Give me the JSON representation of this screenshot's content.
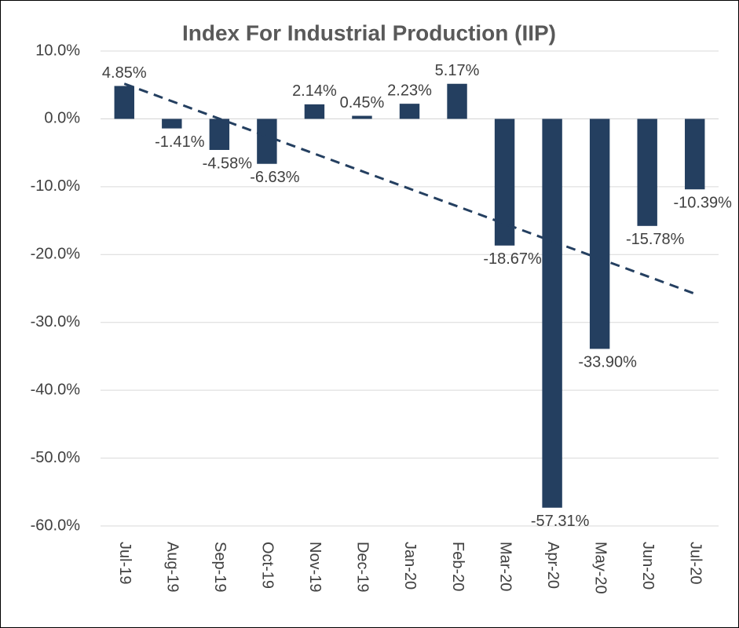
{
  "chart_data": {
    "type": "bar",
    "title": "Index For Industrial Production (IIP)",
    "categories": [
      "Jul-19",
      "Aug-19",
      "Sep-19",
      "Oct-19",
      "Nov-19",
      "Dec-19",
      "Jan-20",
      "Feb-20",
      "Mar-20",
      "Apr-20",
      "May-20",
      "Jun-20",
      "Jul-20"
    ],
    "values": [
      4.85,
      -1.41,
      -4.58,
      -6.63,
      2.14,
      0.45,
      2.23,
      5.17,
      -18.67,
      -57.31,
      -33.9,
      -15.78,
      -10.39
    ],
    "value_labels": [
      "4.85%",
      "-1.41%",
      "-4.58%",
      "-6.63%",
      "2.14%",
      "0.45%",
      "2.23%",
      "5.17%",
      "-18.67%",
      "-57.31%",
      "-33.90%",
      "-15.78%",
      "-10.39%"
    ],
    "color": "#243f60",
    "ylim": [
      -60,
      10
    ],
    "yticks": [
      {
        "value": -60,
        "label": "-60.0%"
      },
      {
        "value": -50,
        "label": "-50.0%"
      },
      {
        "value": -40,
        "label": "-40.0%"
      },
      {
        "value": -30,
        "label": "-30.0%"
      },
      {
        "value": -20,
        "label": "-20.0%"
      },
      {
        "value": -10,
        "label": "-10.0%"
      },
      {
        "value": 0,
        "label": "0.0%"
      },
      {
        "value": 10,
        "label": "10.0%"
      }
    ],
    "grid": true,
    "trendline": true
  }
}
